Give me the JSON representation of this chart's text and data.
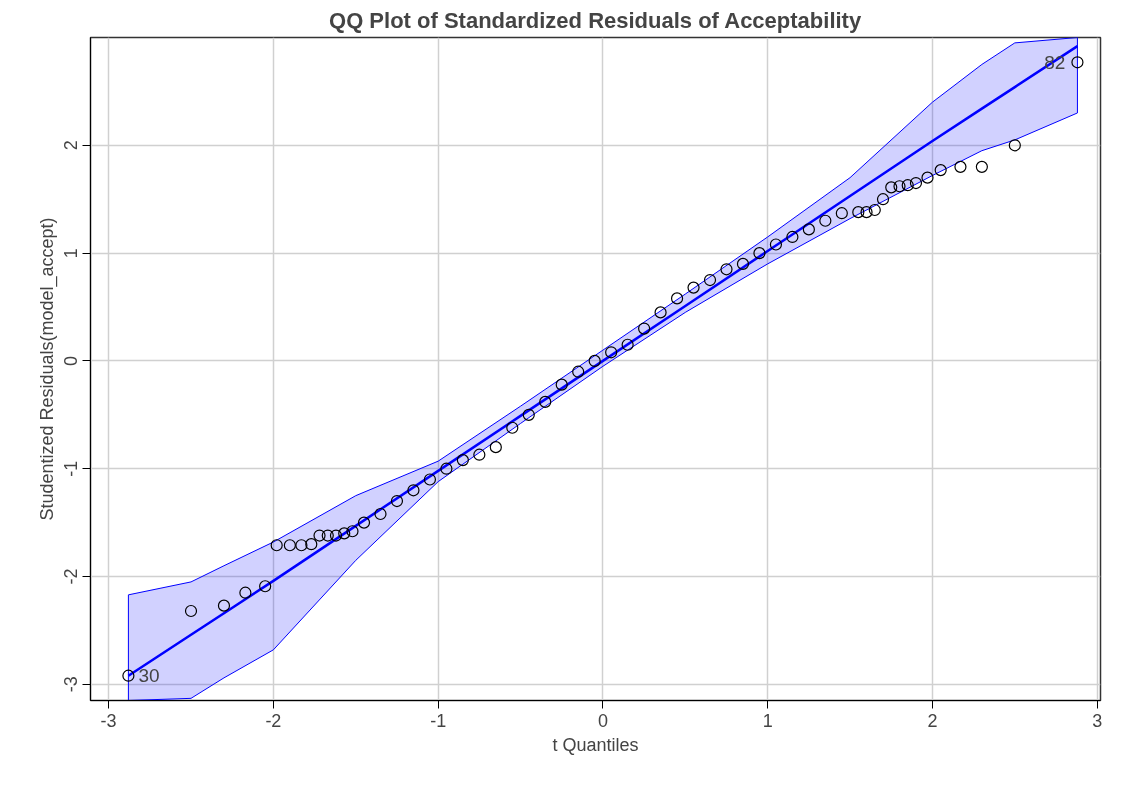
{
  "chart_data": {
    "type": "scatter",
    "title": "QQ Plot of Standardized Residuals of Acceptability",
    "xlabel": "t Quantiles",
    "ylabel": "Studentized Residuals(model_accept)",
    "xlim": [
      -3.11,
      3.02
    ],
    "ylim": [
      -3.15,
      3.0
    ],
    "xticks": [
      -3,
      -2,
      -1,
      0,
      1,
      2,
      3
    ],
    "yticks": [
      -3,
      -2,
      -1,
      0,
      1,
      2
    ],
    "grid": true,
    "series": [
      {
        "marker": "circle",
        "color": "#000000",
        "x": [
          -2.88,
          -2.5,
          -2.3,
          -2.17,
          -2.05,
          -1.98,
          -1.9,
          -1.83,
          -1.77,
          -1.72,
          -1.67,
          -1.62,
          -1.57,
          -1.52,
          -1.45,
          -1.35,
          -1.25,
          -1.15,
          -1.05,
          -0.95,
          -0.85,
          -0.75,
          -0.65,
          -0.55,
          -0.45,
          -0.35,
          -0.25,
          -0.15,
          -0.05,
          0.05,
          0.15,
          0.25,
          0.35,
          0.45,
          0.55,
          0.65,
          0.75,
          0.85,
          0.95,
          1.05,
          1.15,
          1.25,
          1.35,
          1.45,
          1.55,
          1.6,
          1.65,
          1.7,
          1.75,
          1.8,
          1.85,
          1.9,
          1.97,
          2.05,
          2.17,
          2.3,
          2.5,
          2.88
        ],
        "values": [
          -2.92,
          -2.32,
          -2.27,
          -2.15,
          -2.09,
          -1.71,
          -1.71,
          -1.71,
          -1.7,
          -1.62,
          -1.62,
          -1.62,
          -1.6,
          -1.58,
          -1.5,
          -1.42,
          -1.3,
          -1.2,
          -1.1,
          -1.0,
          -0.92,
          -0.87,
          -0.8,
          -0.62,
          -0.5,
          -0.38,
          -0.22,
          -0.1,
          0.0,
          0.08,
          0.15,
          0.3,
          0.45,
          0.58,
          0.68,
          0.75,
          0.85,
          0.9,
          1.0,
          1.08,
          1.15,
          1.22,
          1.3,
          1.37,
          1.38,
          1.38,
          1.4,
          1.5,
          1.61,
          1.62,
          1.63,
          1.65,
          1.7,
          1.77,
          1.8,
          1.8,
          2.0,
          2.77
        ]
      },
      {
        "type": "line",
        "marker": "none",
        "color": "#0000ff",
        "x": [
          -2.88,
          -2.5,
          -2.3,
          -2.0,
          -1.5,
          -1.0,
          -0.5,
          0.0,
          0.5,
          1.0,
          1.5,
          2.0,
          2.3,
          2.5,
          2.88
        ],
        "values": [
          -2.92,
          -2.54,
          -2.34,
          -2.04,
          -1.53,
          -1.02,
          -0.51,
          0.0,
          0.51,
          1.02,
          1.53,
          2.04,
          2.34,
          2.54,
          2.92
        ],
        "lower": [
          -3.15,
          -3.13,
          -2.94,
          -2.68,
          -1.85,
          -1.12,
          -0.58,
          -0.05,
          0.45,
          0.9,
          1.32,
          1.72,
          1.95,
          2.05,
          2.3
        ],
        "upper": [
          -2.17,
          -2.05,
          -1.9,
          -1.68,
          -1.25,
          -0.93,
          -0.42,
          0.1,
          0.62,
          1.15,
          1.7,
          2.4,
          2.75,
          2.95,
          3.0
        ]
      }
    ],
    "annotations": [
      {
        "text": "82",
        "x": 2.88,
        "y": 2.77
      },
      {
        "text": "30",
        "x": -2.88,
        "y": -2.92
      }
    ]
  }
}
